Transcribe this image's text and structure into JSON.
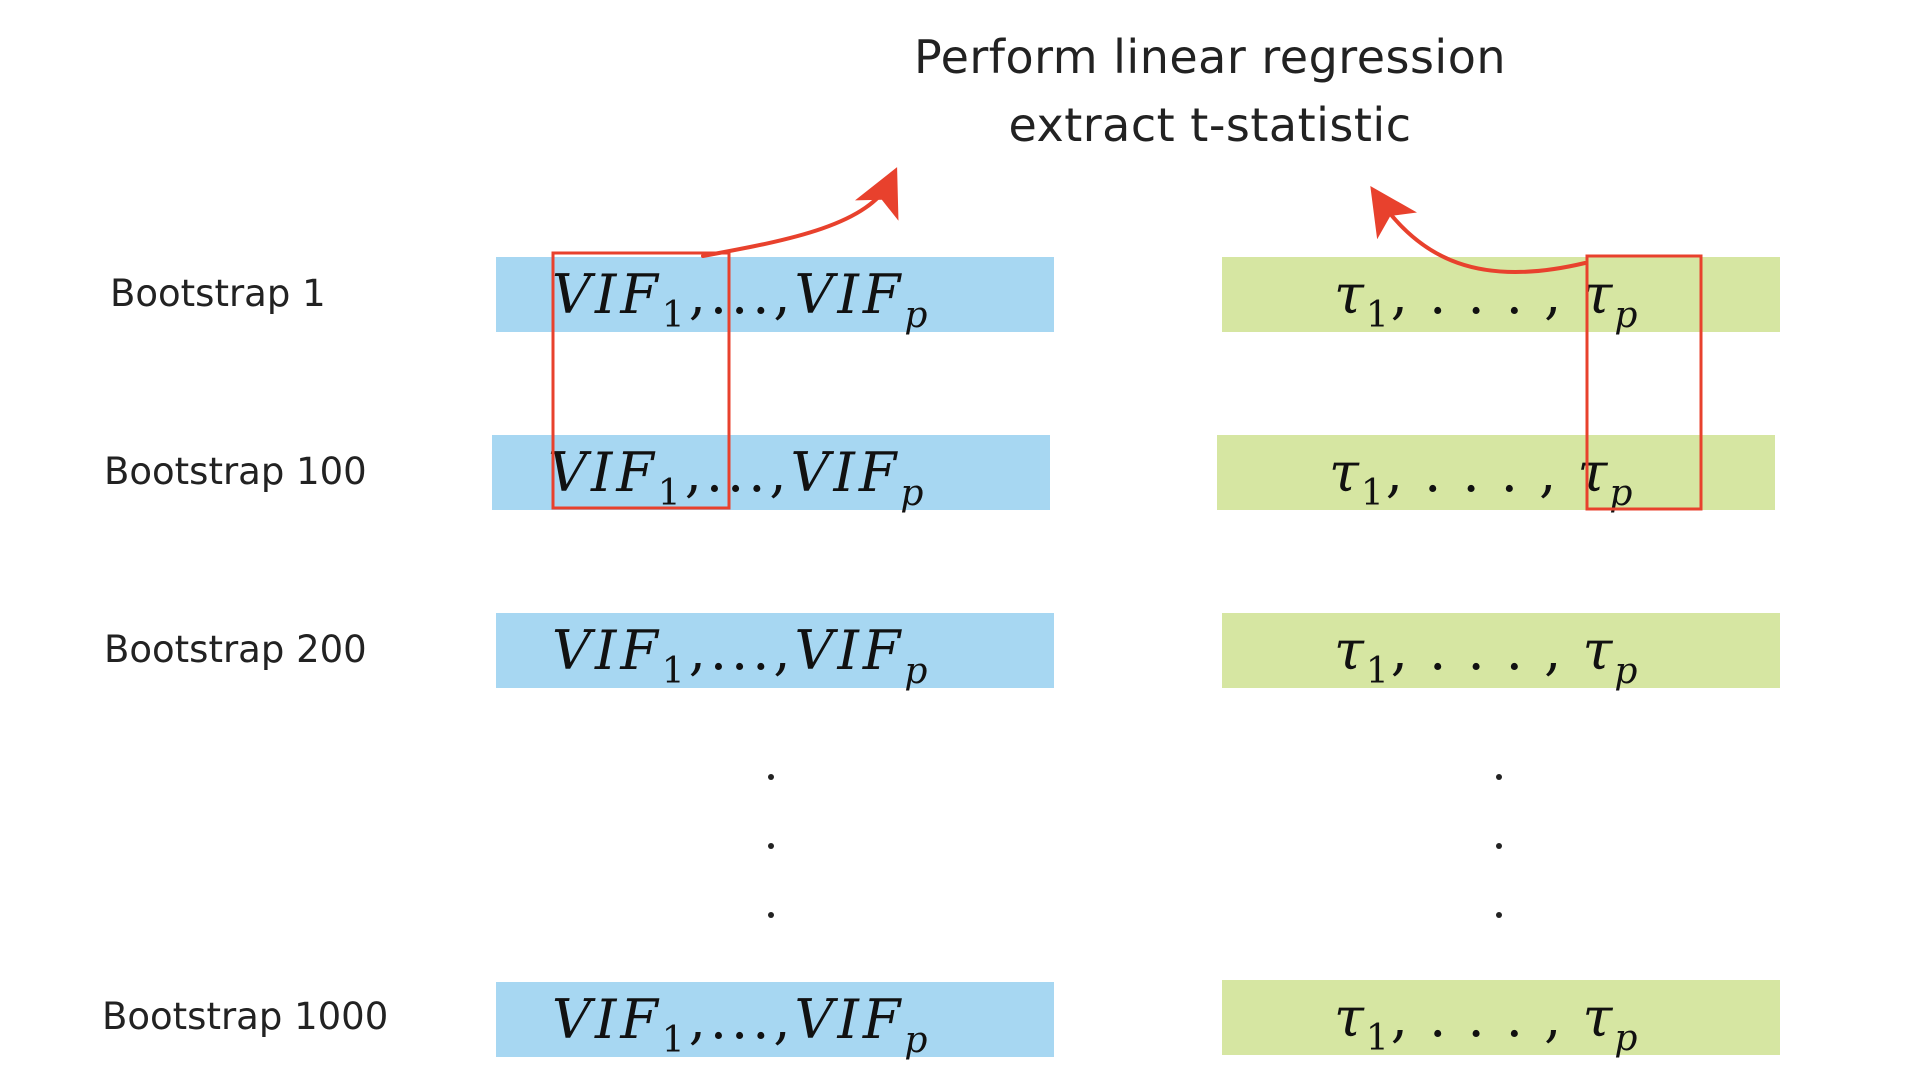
{
  "title": {
    "line1": "Perform linear regression",
    "line2": "extract t-statistic"
  },
  "colors": {
    "vif_bar": "#a7d7f2",
    "tau_bar": "#d6e6a2",
    "highlight": "#e8412d",
    "text": "#222222"
  },
  "formulas": {
    "vif": {
      "base": "VIF",
      "first_sub": "1",
      "separator": ",...,",
      "last_sub": "p"
    },
    "tau": {
      "base": "τ",
      "first_sub": "1",
      "separator": ", . . . , ",
      "last_sub": "p"
    }
  },
  "rows": [
    {
      "label": "Bootstrap 1"
    },
    {
      "label": "Bootstrap 100"
    },
    {
      "label": "Bootstrap 200"
    },
    {
      "label": "Bootstrap 1000"
    }
  ],
  "annotations": [
    {
      "kind": "arrow",
      "from": "VIF_1 column box",
      "to": "Perform linear regression"
    },
    {
      "kind": "arrow",
      "from": "tau_p column box",
      "to": "extract t-statistic"
    }
  ]
}
